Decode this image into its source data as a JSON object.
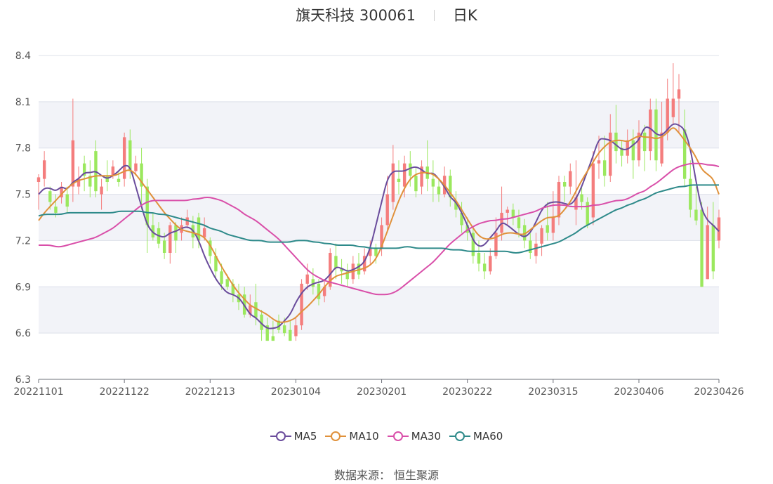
{
  "title": {
    "name": "旗天科技 300061",
    "period": "日K"
  },
  "source_label": "数据来源：  恒生聚源",
  "colors": {
    "up": "#f47d7d",
    "down": "#9be85e",
    "MA5": "#6a4c9c",
    "MA10": "#e0913b",
    "MA30": "#d94fa9",
    "MA60": "#2e8a8a",
    "band": "#f2f3f8",
    "grid": "#dde0ea"
  },
  "chart_data": {
    "type": "candlestick",
    "y_ticks": [
      6.3,
      6.6,
      6.9,
      7.2,
      7.5,
      7.8,
      8.1,
      8.4
    ],
    "ylim": [
      6.3,
      8.4
    ],
    "x_tick_labels": [
      "20221101",
      "20221122",
      "20221213",
      "20230104",
      "20230201",
      "20230222",
      "20230315",
      "20230406",
      "20230426"
    ],
    "x_tick_index": [
      0,
      15,
      30,
      45,
      60,
      75,
      90,
      105,
      119
    ],
    "series_names": [
      "MA5",
      "MA10",
      "MA30",
      "MA60"
    ],
    "ohlc": [
      [
        7.58,
        7.61,
        7.4,
        7.63
      ],
      [
        7.6,
        7.72,
        7.55,
        7.78
      ],
      [
        7.52,
        7.45,
        7.4,
        7.55
      ],
      [
        7.42,
        7.38,
        7.35,
        7.5
      ],
      [
        7.48,
        7.55,
        7.44,
        7.58
      ],
      [
        7.5,
        7.42,
        7.38,
        7.55
      ],
      [
        7.55,
        7.85,
        7.45,
        8.12
      ],
      [
        7.55,
        7.6,
        7.5,
        7.68
      ],
      [
        7.7,
        7.62,
        7.52,
        7.75
      ],
      [
        7.62,
        7.55,
        7.48,
        7.72
      ],
      [
        7.78,
        7.52,
        7.48,
        7.85
      ],
      [
        7.5,
        7.55,
        7.4,
        7.6
      ],
      [
        7.62,
        7.58,
        7.52,
        7.72
      ],
      [
        7.62,
        7.68,
        7.6,
        7.72
      ],
      [
        7.6,
        7.58,
        7.55,
        7.65
      ],
      [
        7.6,
        7.87,
        7.55,
        7.9
      ],
      [
        7.85,
        7.65,
        7.6,
        7.92
      ],
      [
        7.65,
        7.7,
        7.62,
        7.75
      ],
      [
        7.7,
        7.55,
        7.4,
        7.8
      ],
      [
        7.55,
        7.3,
        7.12,
        7.6
      ],
      [
        7.3,
        7.22,
        7.2,
        7.38
      ],
      [
        7.28,
        7.18,
        7.15,
        7.32
      ],
      [
        7.2,
        7.12,
        7.08,
        7.25
      ],
      [
        7.12,
        7.3,
        7.05,
        7.32
      ],
      [
        7.3,
        7.2,
        7.12,
        7.32
      ],
      [
        7.25,
        7.3,
        7.2,
        7.35
      ],
      [
        7.3,
        7.35,
        7.28,
        7.4
      ],
      [
        7.3,
        7.22,
        7.15,
        7.36
      ],
      [
        7.35,
        7.2,
        7.15,
        7.38
      ],
      [
        7.22,
        7.28,
        7.2,
        7.35
      ],
      [
        7.2,
        7.1,
        7.05,
        7.22
      ],
      [
        7.1,
        7.0,
        6.95,
        7.15
      ],
      [
        7.0,
        6.92,
        6.88,
        7.05
      ],
      [
        6.95,
        6.9,
        6.88,
        6.98
      ],
      [
        6.92,
        6.85,
        6.8,
        6.95
      ],
      [
        6.85,
        6.8,
        6.75,
        6.92
      ],
      [
        6.85,
        6.72,
        6.7,
        6.9
      ],
      [
        6.72,
        6.78,
        6.7,
        6.85
      ],
      [
        6.8,
        6.7,
        6.65,
        6.92
      ],
      [
        6.72,
        6.62,
        6.55,
        6.75
      ],
      [
        6.65,
        6.55,
        6.55,
        6.7
      ],
      [
        6.58,
        6.55,
        6.55,
        6.68
      ],
      [
        6.68,
        6.62,
        6.6,
        6.72
      ],
      [
        6.65,
        6.6,
        6.58,
        6.7
      ],
      [
        6.62,
        6.55,
        6.55,
        6.68
      ],
      [
        6.58,
        6.65,
        6.55,
        6.7
      ],
      [
        6.65,
        6.92,
        6.62,
        6.95
      ],
      [
        6.92,
        6.98,
        6.88,
        7.05
      ],
      [
        6.95,
        6.9,
        6.85,
        7.02
      ],
      [
        6.92,
        6.82,
        6.78,
        6.95
      ],
      [
        6.84,
        6.9,
        6.8,
        6.95
      ],
      [
        6.9,
        7.12,
        6.88,
        7.15
      ],
      [
        7.1,
        7.02,
        6.95,
        7.18
      ],
      [
        7.02,
        7.0,
        6.92,
        7.08
      ],
      [
        7.0,
        6.95,
        6.9,
        7.05
      ],
      [
        6.95,
        7.05,
        6.92,
        7.1
      ],
      [
        7.05,
        6.98,
        6.95,
        7.12
      ],
      [
        7.0,
        7.1,
        6.98,
        7.15
      ],
      [
        7.1,
        7.15,
        7.05,
        7.2
      ],
      [
        7.15,
        7.1,
        7.05,
        7.18
      ],
      [
        7.15,
        7.3,
        7.1,
        7.35
      ],
      [
        7.3,
        7.5,
        7.25,
        7.62
      ],
      [
        7.45,
        7.7,
        7.4,
        7.82
      ],
      [
        7.6,
        7.58,
        7.5,
        7.72
      ],
      [
        7.55,
        7.7,
        7.48,
        7.75
      ],
      [
        7.7,
        7.62,
        7.55,
        7.78
      ],
      [
        7.62,
        7.52,
        7.48,
        7.68
      ],
      [
        7.55,
        7.68,
        7.5,
        7.72
      ],
      [
        7.68,
        7.6,
        7.52,
        7.85
      ],
      [
        7.6,
        7.55,
        7.45,
        7.72
      ],
      [
        7.55,
        7.5,
        7.45,
        7.6
      ],
      [
        7.5,
        7.62,
        7.48,
        7.68
      ],
      [
        7.62,
        7.48,
        7.42,
        7.66
      ],
      [
        7.45,
        7.4,
        7.35,
        7.52
      ],
      [
        7.38,
        7.3,
        7.25,
        7.45
      ],
      [
        7.3,
        7.25,
        7.2,
        7.35
      ],
      [
        7.25,
        7.1,
        7.05,
        7.28
      ],
      [
        7.12,
        7.05,
        7.0,
        7.2
      ],
      [
        7.05,
        7.0,
        6.95,
        7.12
      ],
      [
        7.0,
        7.1,
        6.98,
        7.15
      ],
      [
        7.1,
        7.25,
        7.08,
        7.35
      ],
      [
        7.25,
        7.38,
        7.2,
        7.55
      ],
      [
        7.38,
        7.4,
        7.3,
        7.42
      ],
      [
        7.4,
        7.35,
        7.3,
        7.44
      ],
      [
        7.35,
        7.28,
        7.22,
        7.4
      ],
      [
        7.3,
        7.2,
        7.15,
        7.34
      ],
      [
        7.2,
        7.12,
        7.08,
        7.25
      ],
      [
        7.1,
        7.18,
        7.05,
        7.25
      ],
      [
        7.18,
        7.28,
        7.1,
        7.3
      ],
      [
        7.3,
        7.25,
        7.2,
        7.45
      ],
      [
        7.25,
        7.35,
        7.2,
        7.52
      ],
      [
        7.35,
        7.58,
        7.3,
        7.62
      ],
      [
        7.58,
        7.55,
        7.45,
        7.62
      ],
      [
        7.55,
        7.65,
        7.5,
        7.7
      ],
      [
        7.4,
        7.48,
        7.3,
        7.72
      ],
      [
        7.5,
        7.45,
        7.4,
        7.55
      ],
      [
        7.45,
        7.3,
        7.28,
        7.48
      ],
      [
        7.35,
        7.7,
        7.3,
        7.78
      ],
      [
        7.7,
        7.72,
        7.6,
        7.88
      ],
      [
        7.72,
        7.62,
        7.55,
        7.88
      ],
      [
        7.62,
        7.9,
        7.58,
        8.02
      ],
      [
        7.9,
        7.78,
        7.7,
        8.08
      ],
      [
        7.8,
        7.75,
        7.68,
        7.85
      ],
      [
        7.75,
        7.85,
        7.7,
        7.92
      ],
      [
        7.85,
        7.72,
        7.6,
        7.92
      ],
      [
        7.72,
        7.9,
        7.68,
        7.98
      ],
      [
        7.9,
        7.78,
        7.65,
        7.95
      ],
      [
        7.78,
        8.05,
        7.72,
        8.12
      ],
      [
        8.05,
        7.72,
        7.65,
        8.12
      ],
      [
        7.7,
        7.9,
        7.68,
        8.1
      ],
      [
        7.9,
        8.12,
        7.85,
        8.25
      ],
      [
        8.0,
        8.12,
        7.95,
        8.35
      ],
      [
        8.12,
        8.18,
        7.9,
        8.28
      ],
      [
        7.92,
        7.6,
        7.55,
        8.05
      ],
      [
        7.6,
        7.4,
        7.35,
        7.72
      ],
      [
        7.4,
        7.33,
        7.3,
        7.55
      ],
      [
        7.4,
        6.9,
        6.9,
        7.45
      ],
      [
        6.95,
        7.3,
        6.95,
        7.42
      ],
      [
        7.3,
        7.0,
        6.95,
        7.45
      ],
      [
        7.2,
        7.35,
        7.15,
        7.4
      ]
    ],
    "MA5": [
      7.5,
      7.54,
      7.54,
      7.52,
      7.55,
      7.53,
      7.58,
      7.6,
      7.64,
      7.64,
      7.65,
      7.62,
      7.6,
      7.62,
      7.65,
      7.69,
      7.68,
      7.55,
      7.42,
      7.3,
      7.25,
      7.23,
      7.22,
      7.25,
      7.26,
      7.28,
      7.29,
      7.27,
      7.2,
      7.1,
      7.02,
      6.95,
      6.9,
      6.86,
      6.85,
      6.83,
      6.78,
      6.72,
      6.7,
      6.66,
      6.63,
      6.63,
      6.64,
      6.68,
      6.72,
      6.8,
      6.86,
      6.9,
      6.92,
      6.93,
      6.94,
      6.98,
      7.03,
      7.02,
      7.0,
      7.01,
      7.03,
      7.06,
      7.15,
      7.3,
      7.45,
      7.6,
      7.65,
      7.65,
      7.65,
      7.67,
      7.68,
      7.66,
      7.63,
      7.64,
      7.6,
      7.55,
      7.48,
      7.45,
      7.38,
      7.3,
      7.2,
      7.16,
      7.17,
      7.22,
      7.26,
      7.32,
      7.3,
      7.27,
      7.24,
      7.22,
      7.25,
      7.32,
      7.4,
      7.44,
      7.45,
      7.45,
      7.44,
      7.43,
      7.47,
      7.55,
      7.65,
      7.75,
      7.86,
      7.86,
      7.85,
      7.82,
      7.79,
      7.79,
      7.82,
      7.85,
      7.94,
      7.93,
      7.89,
      7.88,
      7.92,
      7.96,
      7.95,
      7.92,
      7.8,
      7.58,
      7.4,
      7.33,
      7.3,
      7.26
    ],
    "MA10": [
      7.33,
      7.38,
      7.42,
      7.46,
      7.5,
      7.54,
      7.57,
      7.59,
      7.6,
      7.61,
      7.62,
      7.62,
      7.62,
      7.62,
      7.63,
      7.65,
      7.66,
      7.63,
      7.58,
      7.53,
      7.48,
      7.43,
      7.38,
      7.34,
      7.3,
      7.27,
      7.26,
      7.25,
      7.24,
      7.22,
      7.17,
      7.1,
      7.03,
      6.97,
      6.91,
      6.86,
      6.82,
      6.78,
      6.76,
      6.74,
      6.72,
      6.69,
      6.67,
      6.67,
      6.68,
      6.7,
      6.74,
      6.77,
      6.81,
      6.85,
      6.9,
      6.94,
      6.97,
      6.98,
      6.99,
      7.0,
      7.01,
      7.02,
      7.04,
      7.08,
      7.16,
      7.26,
      7.36,
      7.46,
      7.54,
      7.6,
      7.63,
      7.64,
      7.64,
      7.63,
      7.6,
      7.56,
      7.51,
      7.46,
      7.4,
      7.34,
      7.28,
      7.23,
      7.21,
      7.21,
      7.22,
      7.24,
      7.25,
      7.25,
      7.24,
      7.24,
      7.27,
      7.3,
      7.33,
      7.35,
      7.35,
      7.36,
      7.4,
      7.45,
      7.52,
      7.59,
      7.65,
      7.71,
      7.77,
      7.81,
      7.84,
      7.85,
      7.85,
      7.84,
      7.86,
      7.88,
      7.87,
      7.87,
      7.86,
      7.87,
      7.9,
      7.94,
      7.9,
      7.85,
      7.8,
      7.74,
      7.66,
      7.63,
      7.6,
      7.5
    ],
    "MA30": [
      7.17,
      7.17,
      7.17,
      7.16,
      7.16,
      7.17,
      7.18,
      7.19,
      7.2,
      7.21,
      7.22,
      7.24,
      7.26,
      7.28,
      7.31,
      7.34,
      7.37,
      7.4,
      7.43,
      7.45,
      7.46,
      7.46,
      7.46,
      7.46,
      7.46,
      7.46,
      7.46,
      7.47,
      7.47,
      7.48,
      7.48,
      7.47,
      7.46,
      7.44,
      7.42,
      7.4,
      7.37,
      7.35,
      7.33,
      7.3,
      7.27,
      7.24,
      7.21,
      7.17,
      7.13,
      7.09,
      7.05,
      7.01,
      6.98,
      6.96,
      6.94,
      6.93,
      6.92,
      6.91,
      6.9,
      6.89,
      6.88,
      6.87,
      6.86,
      6.85,
      6.85,
      6.85,
      6.86,
      6.88,
      6.91,
      6.94,
      6.97,
      7.0,
      7.03,
      7.06,
      7.1,
      7.14,
      7.18,
      7.21,
      7.24,
      7.27,
      7.29,
      7.31,
      7.32,
      7.33,
      7.33,
      7.34,
      7.34,
      7.35,
      7.36,
      7.37,
      7.38,
      7.39,
      7.41,
      7.42,
      7.43,
      7.43,
      7.43,
      7.42,
      7.42,
      7.42,
      7.42,
      7.43,
      7.43,
      7.44,
      7.45,
      7.46,
      7.46,
      7.47,
      7.49,
      7.51,
      7.52,
      7.55,
      7.57,
      7.6,
      7.63,
      7.66,
      7.68,
      7.69,
      7.7,
      7.7,
      7.7,
      7.69,
      7.69,
      7.68
    ],
    "MA60": [
      7.36,
      7.37,
      7.37,
      7.37,
      7.37,
      7.38,
      7.38,
      7.38,
      7.38,
      7.38,
      7.38,
      7.38,
      7.38,
      7.38,
      7.39,
      7.39,
      7.39,
      7.39,
      7.39,
      7.38,
      7.38,
      7.37,
      7.37,
      7.36,
      7.35,
      7.34,
      7.33,
      7.32,
      7.31,
      7.3,
      7.28,
      7.27,
      7.26,
      7.24,
      7.23,
      7.22,
      7.21,
      7.2,
      7.2,
      7.2,
      7.19,
      7.19,
      7.19,
      7.19,
      7.19,
      7.2,
      7.2,
      7.2,
      7.19,
      7.19,
      7.18,
      7.18,
      7.17,
      7.17,
      7.17,
      7.17,
      7.16,
      7.16,
      7.15,
      7.15,
      7.15,
      7.15,
      7.15,
      7.15,
      7.16,
      7.16,
      7.15,
      7.15,
      7.15,
      7.15,
      7.15,
      7.15,
      7.14,
      7.14,
      7.14,
      7.13,
      7.13,
      7.13,
      7.13,
      7.13,
      7.13,
      7.13,
      7.13,
      7.12,
      7.12,
      7.13,
      7.14,
      7.15,
      7.16,
      7.17,
      7.18,
      7.19,
      7.21,
      7.23,
      7.25,
      7.28,
      7.3,
      7.32,
      7.34,
      7.36,
      7.38,
      7.4,
      7.41,
      7.43,
      7.44,
      7.46,
      7.47,
      7.49,
      7.51,
      7.52,
      7.53,
      7.54,
      7.55,
      7.55,
      7.56,
      7.56,
      7.56,
      7.56,
      7.56,
      7.56
    ]
  }
}
